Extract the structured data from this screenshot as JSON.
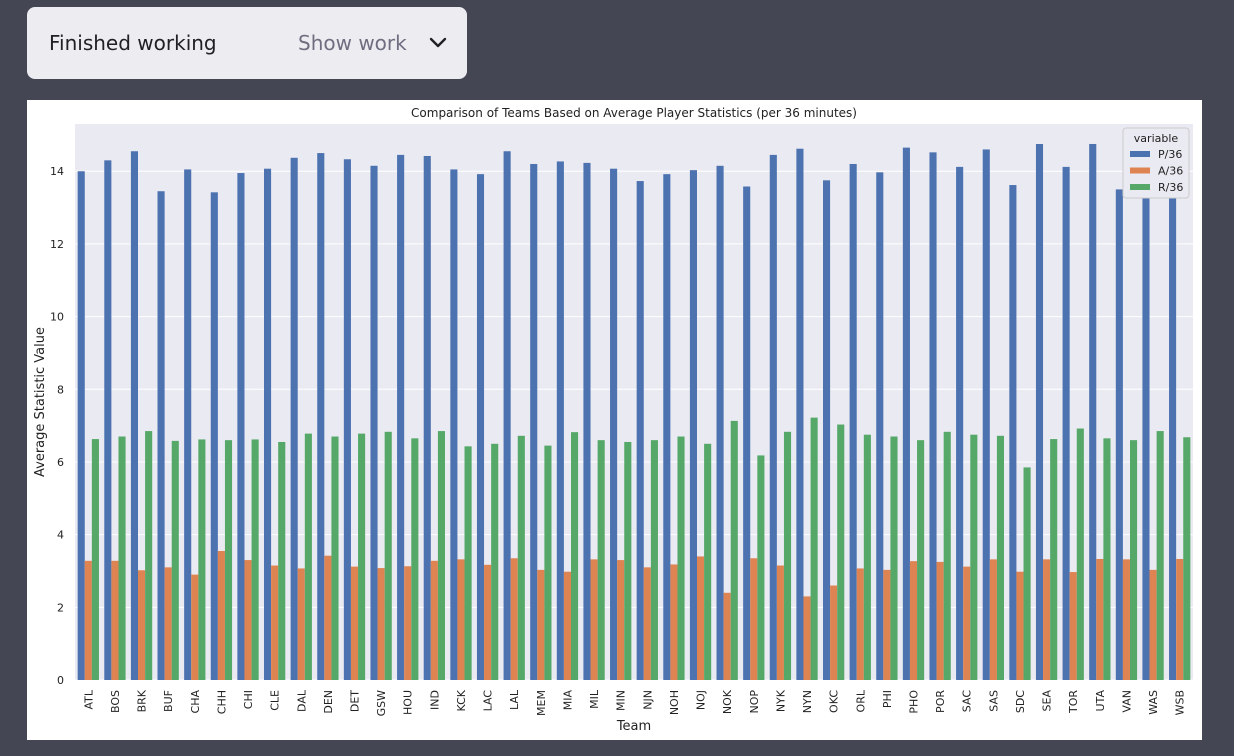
{
  "status": {
    "title": "Finished working",
    "show_work_label": "Show work",
    "toggle_icon": "chevron-down-icon"
  },
  "chart_data": {
    "type": "bar",
    "title": "Comparison of Teams Based on Average Player Statistics (per 36 minutes)",
    "xlabel": "Team",
    "ylabel": "Average Statistic Value",
    "ylim": [
      0,
      15.3
    ],
    "yticks": [
      0,
      2,
      4,
      6,
      8,
      10,
      12,
      14
    ],
    "grid": true,
    "legend_title": "variable",
    "legend_position": "top-right",
    "categories": [
      "ATL",
      "BOS",
      "BRK",
      "BUF",
      "CHA",
      "CHH",
      "CHI",
      "CLE",
      "DAL",
      "DEN",
      "DET",
      "GSW",
      "HOU",
      "IND",
      "KCK",
      "LAC",
      "LAL",
      "MEM",
      "MIA",
      "MIL",
      "MIN",
      "NJN",
      "NOH",
      "NOJ",
      "NOK",
      "NOP",
      "NYK",
      "NYN",
      "OKC",
      "ORL",
      "PHI",
      "PHO",
      "POR",
      "SAC",
      "SAS",
      "SDC",
      "SEA",
      "TOR",
      "UTA",
      "VAN",
      "WAS",
      "WSB"
    ],
    "series": [
      {
        "name": "P/36",
        "color": "#4c72b0",
        "values": [
          14.0,
          14.3,
          14.55,
          13.45,
          14.05,
          13.42,
          13.95,
          14.07,
          14.37,
          14.5,
          14.33,
          14.15,
          14.45,
          14.42,
          14.05,
          13.92,
          14.55,
          14.2,
          14.27,
          14.23,
          14.07,
          13.73,
          13.92,
          14.03,
          14.15,
          13.58,
          14.45,
          14.62,
          13.75,
          14.2,
          13.97,
          14.65,
          14.52,
          14.12,
          14.6,
          13.62,
          14.75,
          14.12,
          14.75,
          13.5,
          13.6,
          13.45
        ]
      },
      {
        "name": "A/36",
        "color": "#dd8452",
        "values": [
          3.28,
          3.28,
          3.02,
          3.1,
          2.9,
          3.55,
          3.3,
          3.15,
          3.07,
          3.42,
          3.12,
          3.08,
          3.13,
          3.28,
          3.32,
          3.17,
          3.35,
          3.03,
          2.98,
          3.32,
          3.3,
          3.1,
          3.18,
          3.4,
          2.4,
          3.35,
          3.15,
          2.3,
          2.6,
          3.07,
          3.03,
          3.27,
          3.25,
          3.12,
          3.32,
          2.98,
          3.32,
          2.97,
          3.33,
          3.32,
          3.03,
          3.33
        ]
      },
      {
        "name": "R/36",
        "color": "#55a868",
        "values": [
          6.63,
          6.7,
          6.85,
          6.58,
          6.62,
          6.6,
          6.62,
          6.55,
          6.78,
          6.7,
          6.78,
          6.83,
          6.65,
          6.85,
          6.43,
          6.5,
          6.72,
          6.45,
          6.82,
          6.6,
          6.55,
          6.6,
          6.7,
          6.5,
          7.13,
          6.18,
          6.83,
          7.22,
          7.03,
          6.75,
          6.7,
          6.6,
          6.83,
          6.75,
          6.72,
          5.85,
          6.63,
          6.92,
          6.65,
          6.6,
          6.85,
          6.68
        ]
      }
    ]
  }
}
